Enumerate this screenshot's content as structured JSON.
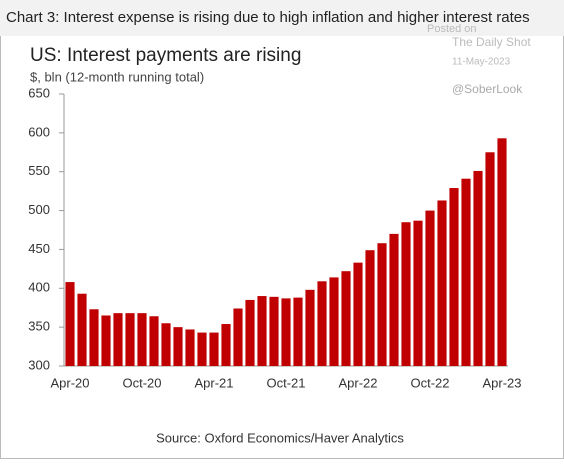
{
  "chart_data": {
    "type": "bar",
    "header": "Chart 3: Interest expense is rising due to high inflation and higher interest rates",
    "title": "US: Interest payments are rising",
    "subtitle": "$, bln (12-month running total)",
    "source": "Source: Oxford Economics/Haver Analytics",
    "watermark": [
      "Posted on",
      "The Daily Shot",
      "11-May-2023",
      "@SoberLook"
    ],
    "categories": [
      "Apr-20",
      null,
      null,
      null,
      null,
      null,
      "Oct-20",
      null,
      null,
      null,
      null,
      null,
      "Apr-21",
      null,
      null,
      null,
      null,
      null,
      "Oct-21",
      null,
      null,
      null,
      null,
      null,
      "Apr-22",
      null,
      null,
      null,
      null,
      null,
      "Oct-22",
      null,
      null,
      null,
      null,
      null,
      "Apr-23"
    ],
    "values": [
      408,
      393,
      373,
      365,
      368,
      368,
      368,
      364,
      355,
      350,
      347,
      343,
      343,
      354,
      374,
      385,
      390,
      389,
      387,
      388,
      398,
      409,
      414,
      422,
      433,
      449,
      458,
      470,
      485,
      487,
      500,
      513,
      529,
      541,
      551,
      575,
      593
    ],
    "color": "#c00000",
    "ylim": [
      300,
      650
    ],
    "yticks": [
      300,
      350,
      400,
      450,
      500,
      550,
      600,
      650
    ],
    "grid": false
  }
}
